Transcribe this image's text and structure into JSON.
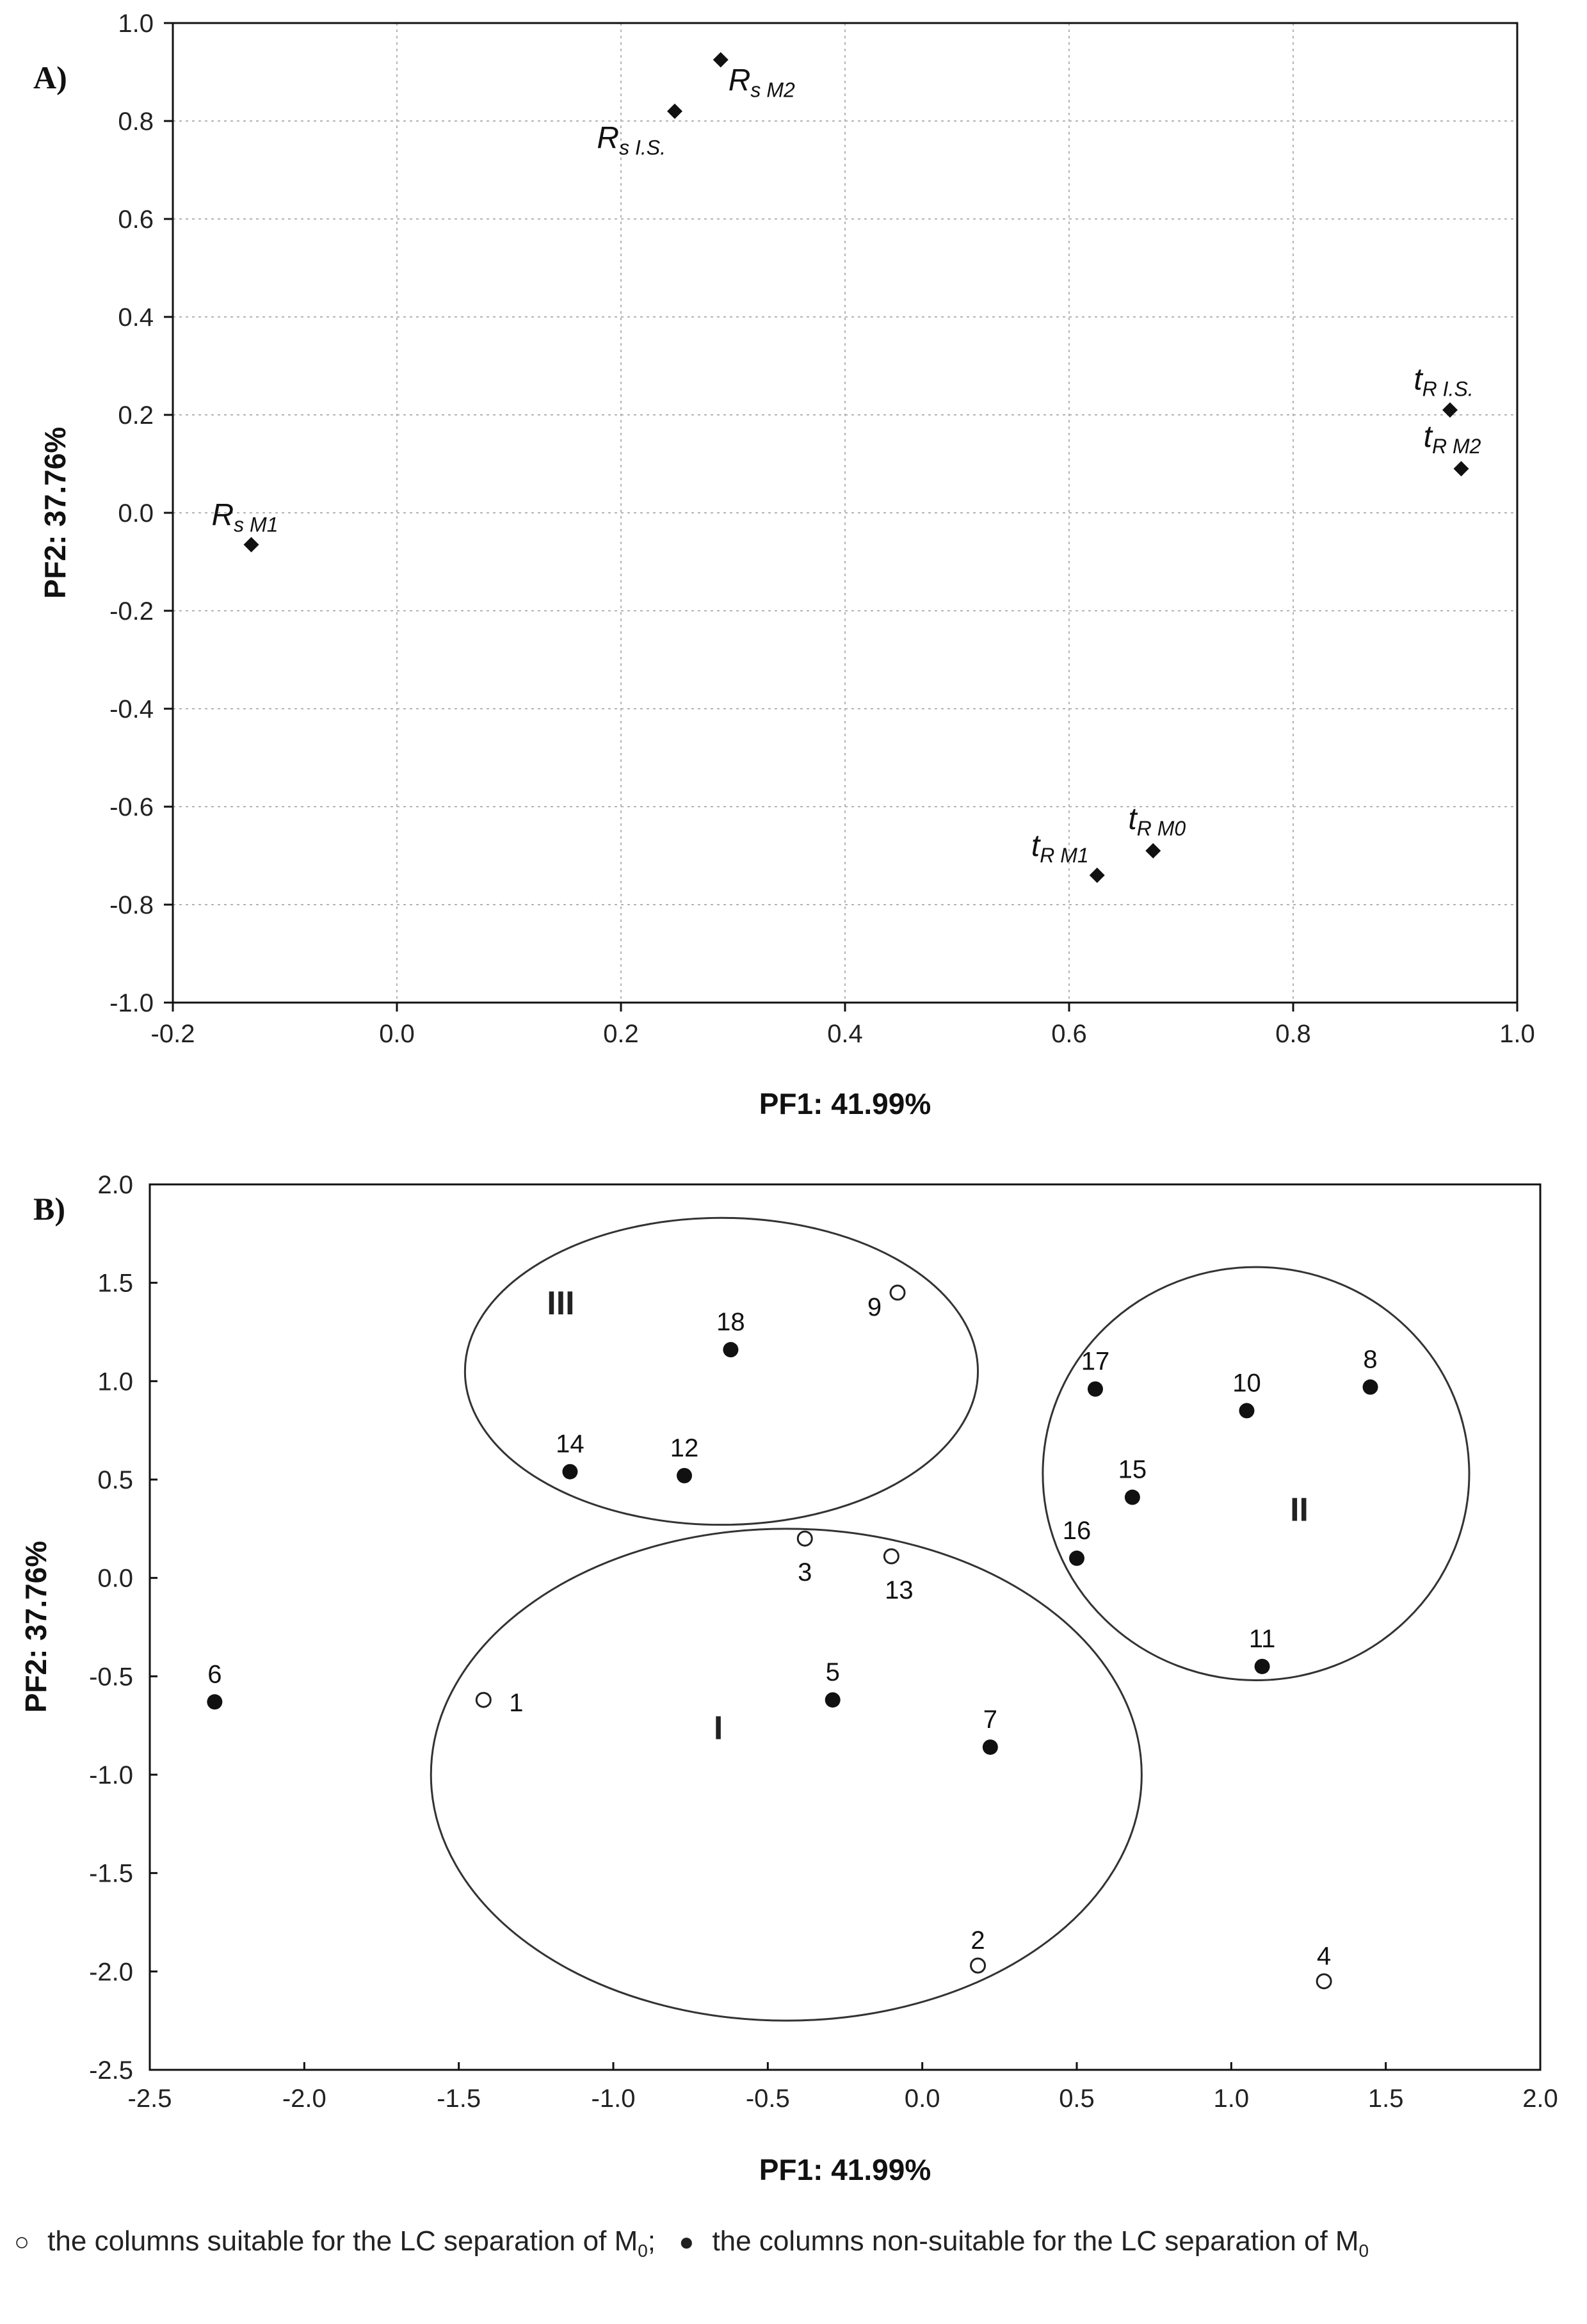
{
  "chart_data": [
    {
      "panel": "A)",
      "type": "scatter",
      "xlabel": "PF1: 41.99%",
      "ylabel": "PF2: 37.76%",
      "xlim": [
        -0.2,
        1.0
      ],
      "ylim": [
        -1.0,
        1.0
      ],
      "xticks": [
        "-0.2",
        "0.0",
        "0.2",
        "0.4",
        "0.6",
        "0.8",
        "1.0"
      ],
      "yticks": [
        "1.0",
        "0.8",
        "0.6",
        "0.4",
        "0.2",
        "0.0",
        "-0.2",
        "-0.4",
        "-0.6",
        "-0.8",
        "-1.0"
      ],
      "grid": true,
      "points": [
        {
          "base": "R",
          "sub": "s M2",
          "x": 0.289,
          "y": 0.925
        },
        {
          "base": "R",
          "sub": "s I.S.",
          "x": 0.248,
          "y": 0.82
        },
        {
          "base": "R",
          "sub": "s M1",
          "x": -0.13,
          "y": -0.065
        },
        {
          "base": "t",
          "sub": "R I.S.",
          "x": 0.94,
          "y": 0.21
        },
        {
          "base": "t",
          "sub": "R M2",
          "x": 0.95,
          "y": 0.09
        },
        {
          "base": "t",
          "sub": "R M0",
          "x": 0.675,
          "y": -0.69
        },
        {
          "base": "t",
          "sub": "R M1",
          "x": 0.625,
          "y": -0.74
        }
      ]
    },
    {
      "panel": "B)",
      "type": "scatter",
      "xlabel": "PF1: 41.99%",
      "ylabel": "PF2: 37.76%",
      "xlim": [
        -2.5,
        2.0
      ],
      "ylim": [
        -2.5,
        2.0
      ],
      "xticks": [
        "-2.5",
        "-2.0",
        "-1.5",
        "-1.0",
        "-0.5",
        "0.0",
        "0.5",
        "1.0",
        "1.5",
        "2.0"
      ],
      "yticks": [
        "2.0",
        "1.5",
        "1.0",
        "0.5",
        "0.0",
        "-0.5",
        "-1.0",
        "-1.5",
        "-2.0",
        "-2.5"
      ],
      "grid": false,
      "points": [
        {
          "label": "1",
          "x": -1.42,
          "y": -0.62,
          "suitable": true
        },
        {
          "label": "2",
          "x": 0.18,
          "y": -1.97,
          "suitable": true
        },
        {
          "label": "3",
          "x": -0.38,
          "y": 0.2,
          "suitable": true
        },
        {
          "label": "4",
          "x": 1.3,
          "y": -2.05,
          "suitable": true
        },
        {
          "label": "5",
          "x": -0.29,
          "y": -0.62,
          "suitable": false
        },
        {
          "label": "6",
          "x": -2.29,
          "y": -0.63,
          "suitable": false
        },
        {
          "label": "7",
          "x": 0.22,
          "y": -0.86,
          "suitable": false
        },
        {
          "label": "8",
          "x": 1.45,
          "y": 0.97,
          "suitable": false
        },
        {
          "label": "9",
          "x": -0.08,
          "y": 1.45,
          "suitable": true
        },
        {
          "label": "10",
          "x": 1.05,
          "y": 0.85,
          "suitable": false
        },
        {
          "label": "11",
          "x": 1.1,
          "y": -0.45,
          "suitable": false
        },
        {
          "label": "12",
          "x": -0.77,
          "y": 0.52,
          "suitable": false
        },
        {
          "label": "13",
          "x": -0.1,
          "y": 0.11,
          "suitable": true
        },
        {
          "label": "14",
          "x": -1.14,
          "y": 0.54,
          "suitable": false
        },
        {
          "label": "15",
          "x": 0.68,
          "y": 0.41,
          "suitable": false
        },
        {
          "label": "16",
          "x": 0.5,
          "y": 0.1,
          "suitable": false
        },
        {
          "label": "17",
          "x": 0.56,
          "y": 0.96,
          "suitable": false
        },
        {
          "label": "18",
          "x": -0.62,
          "y": 1.16,
          "suitable": false
        }
      ],
      "groups": [
        {
          "label": "I",
          "cx": -0.44,
          "cy": -1.0,
          "rx": 1.15,
          "ry": 1.25
        },
        {
          "label": "II",
          "cx": 1.08,
          "cy": 0.53,
          "rx": 0.69,
          "ry": 1.05
        },
        {
          "label": "III",
          "cx": -0.65,
          "cy": 1.05,
          "rx": 0.83,
          "ry": 0.78
        }
      ]
    }
  ],
  "legend": {
    "suitable_symbol": "○",
    "suitable_text": "the columns suitable for the LC separation of M",
    "suitable_sub": "0",
    "suitable_end": ";",
    "nonsuitable_symbol": "●",
    "nonsuitable_text": "the columns non-suitable for the LC separation of M",
    "nonsuitable_sub": "0"
  }
}
